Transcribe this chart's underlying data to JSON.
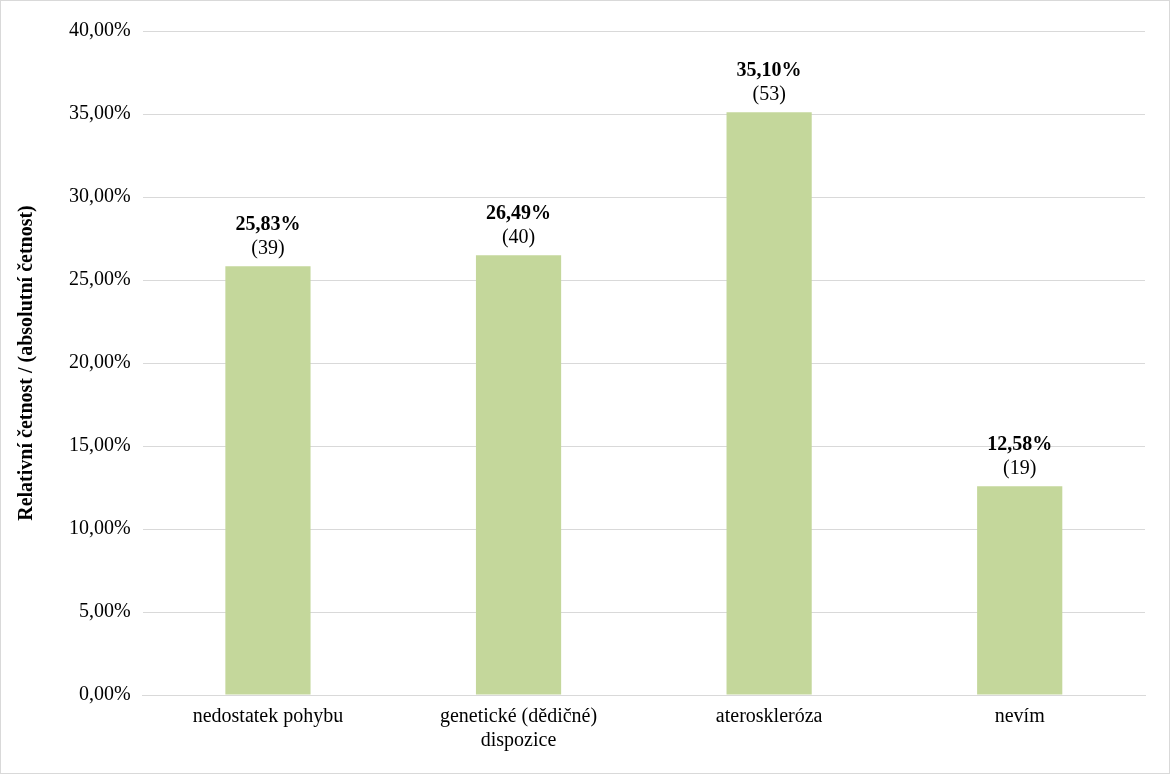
{
  "chart_data": {
    "type": "bar",
    "ylabel": "Relativní četnost / (absolutní četnost)",
    "categories": [
      "nedostatek pohybu",
      "genetické (dědičné) dispozice",
      "ateroskleróza",
      "nevím"
    ],
    "values": [
      25.83,
      26.49,
      35.1,
      12.58
    ],
    "value_labels": [
      "25,83%\n(39)",
      "26,49%\n(40)",
      "35,10%\n(53)",
      "12,58%\n(19)"
    ],
    "color": "#c4d79b",
    "ylim": [
      0,
      40
    ],
    "yticks": [
      {
        "value": 0,
        "label": "0,00%"
      },
      {
        "value": 5,
        "label": "5,00%"
      },
      {
        "value": 10,
        "label": "10,00%"
      },
      {
        "value": 15,
        "label": "15,00%"
      },
      {
        "value": 20,
        "label": "20,00%"
      },
      {
        "value": 25,
        "label": "25,00%"
      },
      {
        "value": 30,
        "label": "30,00%"
      },
      {
        "value": 35,
        "label": "35,00%"
      },
      {
        "value": 40,
        "label": "40,00%"
      }
    ],
    "grid": "y",
    "legend": false
  }
}
